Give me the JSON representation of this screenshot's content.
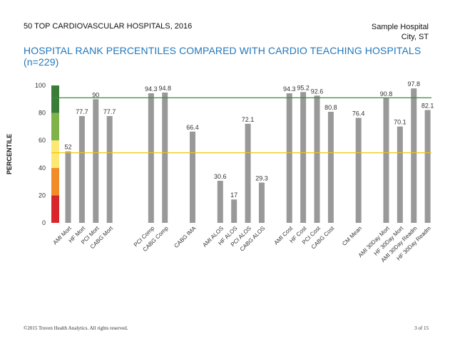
{
  "header": {
    "title": "50 TOP CARDIOVASCULAR HOSPITALS, 2016",
    "hospital_name": "Sample Hospital",
    "hospital_location": "City, ST"
  },
  "subtitle": "HOSPITAL RANK PERCENTILES COMPARED WITH  CARDIO TEACHING HOSPITALS (n=229)",
  "footer": {
    "copyright": "©2015 Truven Health Analytics. All rights reserved.",
    "page": "3 of 15"
  },
  "colors": {
    "bar": "#999999",
    "benchmark_line": "#3a8a3a",
    "median_line": "#f5c400",
    "band_red": "#d9262b",
    "band_orange": "#f28c26",
    "band_yellow": "#fde873",
    "band_lightgreen": "#7fb34a",
    "band_darkgreen": "#3a7d39"
  },
  "chart_data": {
    "type": "bar",
    "ylabel": "PERCENTILE",
    "ylim": [
      0,
      100
    ],
    "yticks": [
      0,
      20,
      40,
      60,
      80,
      100
    ],
    "reference_lines": [
      91,
      51
    ],
    "bands": [
      [
        0,
        20
      ],
      [
        20,
        40
      ],
      [
        40,
        60
      ],
      [
        60,
        80
      ],
      [
        80,
        100
      ]
    ],
    "categories": [
      "AMI Mort",
      "HF Mort",
      "PCI Mort",
      "CABG Mort",
      "",
      "",
      "PCI Comp",
      "CABG Comp",
      "",
      "CABG IMA",
      "",
      "AMI ALOS",
      "HF ALOS",
      "PCI ALOS",
      "CABG ALOS",
      "",
      "AMI Cost",
      "HF Cost",
      "PCI Cost",
      "CABG Cost",
      "",
      "CM Mean",
      "",
      "AMI 30Day Mort",
      "HF 30Day Mort",
      "AMI 30Day Readm",
      "HF 30Day Readm"
    ],
    "values": [
      52,
      77.7,
      90,
      77.7,
      null,
      null,
      94.3,
      94.8,
      null,
      66.4,
      null,
      30.6,
      17,
      72.1,
      29.3,
      null,
      94.3,
      95.2,
      92.6,
      80.8,
      null,
      76.4,
      null,
      90.8,
      70.1,
      97.8,
      82.1
    ],
    "labels": [
      "52",
      "77.7",
      "90",
      "77.7",
      "",
      "",
      "94.3",
      "94.8",
      "",
      "66.4",
      "",
      "30.6",
      "17",
      "72.1",
      "29.3",
      "",
      "94.3",
      "95.2",
      "92.6",
      "80.8",
      "",
      "76.4",
      "",
      "90.8",
      "70.1",
      "97.8",
      "82.1"
    ],
    "legend": "none",
    "grid": false
  }
}
